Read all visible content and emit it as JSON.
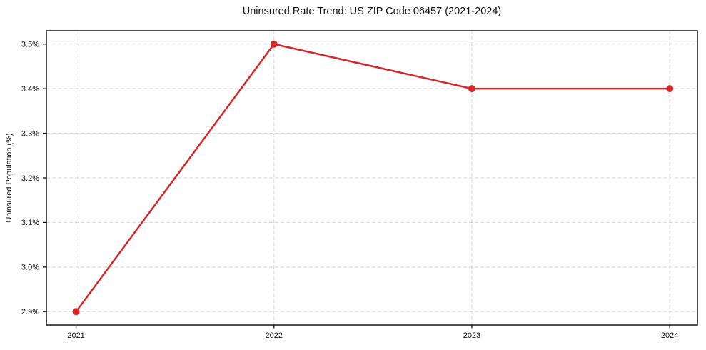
{
  "chart_data": {
    "type": "line",
    "title": "Uninsured Rate Trend: US ZIP Code 06457 (2021-2024)",
    "xlabel": "",
    "ylabel": "Uninsured Population (%)",
    "x": [
      2021,
      2022,
      2023,
      2024
    ],
    "series": [
      {
        "name": "Uninsured Rate",
        "values": [
          2.9,
          3.5,
          3.4,
          3.4
        ]
      }
    ],
    "xticks": [
      2021,
      2022,
      2023,
      2024
    ],
    "xtick_labels": [
      "2021",
      "2022",
      "2023",
      "2024"
    ],
    "yticks": [
      2.9,
      3.0,
      3.1,
      3.2,
      3.3,
      3.4,
      3.5
    ],
    "ytick_labels": [
      "2.9%",
      "3.0%",
      "3.1%",
      "3.2%",
      "3.3%",
      "3.4%",
      "3.5%"
    ],
    "xlim": [
      2020.85,
      2024.14
    ],
    "ylim": [
      2.87,
      3.53
    ],
    "grid": true,
    "grid_style": "dashed",
    "legend": false,
    "marker": "circle",
    "marker_radius": 5
  },
  "colors": {
    "line": "#d62728",
    "marker": "#d62728",
    "grid": "#cccccc",
    "axis": "#000000",
    "background": "#ffffff"
  }
}
